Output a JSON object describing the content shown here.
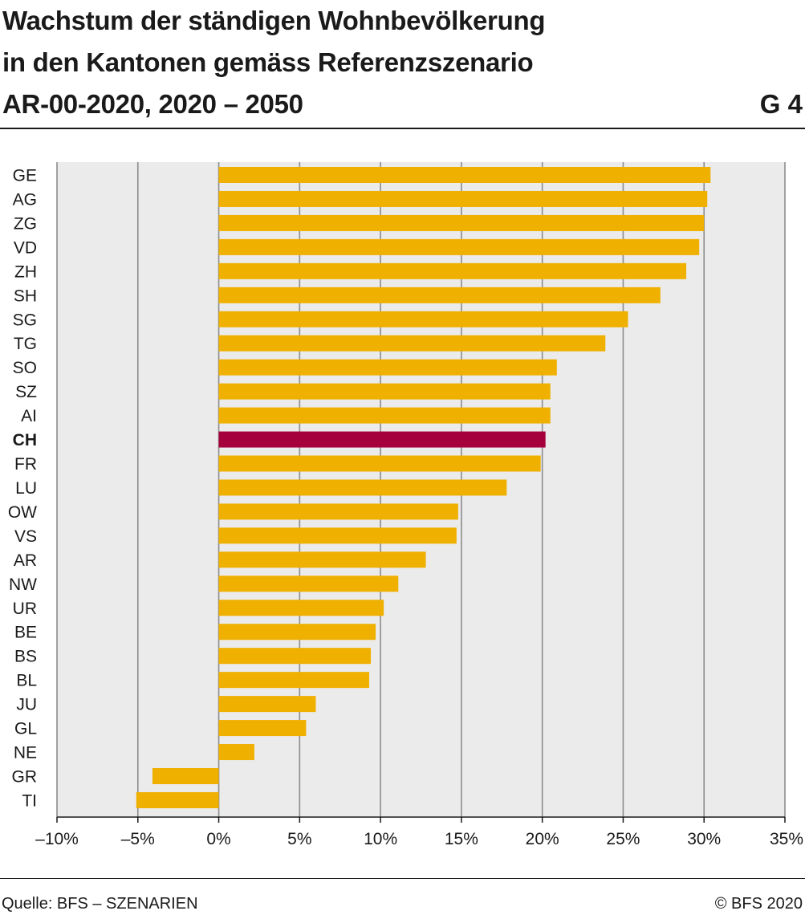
{
  "header": {
    "title_lines": [
      "Wachstum der ständigen Wohnbevölkerung",
      "in den Kantonen gemäss Referenzszenario",
      "AR-00-2020, 2020 – 2050"
    ],
    "graphic_number": "G 4"
  },
  "footer": {
    "source": "Quelle: BFS – SZENARIEN",
    "copyright": "© BFS 2020"
  },
  "colors": {
    "bar": "#f0b000",
    "highlight_bar": "#a5003c",
    "plot_background": "#ebebeb",
    "gridline": "#8c8c8c",
    "axis": "#1a1a1a"
  },
  "chart_data": {
    "type": "bar",
    "orientation": "horizontal",
    "categories": [
      "GE",
      "AG",
      "ZG",
      "VD",
      "ZH",
      "SH",
      "SG",
      "TG",
      "SO",
      "SZ",
      "AI",
      "CH",
      "FR",
      "LU",
      "OW",
      "VS",
      "AR",
      "NW",
      "UR",
      "BE",
      "BS",
      "BL",
      "JU",
      "GL",
      "NE",
      "GR",
      "TI"
    ],
    "values": [
      30.4,
      30.2,
      30.0,
      29.7,
      28.9,
      27.3,
      25.3,
      23.9,
      20.9,
      20.5,
      20.5,
      20.2,
      19.9,
      17.8,
      14.8,
      14.7,
      12.8,
      11.1,
      10.2,
      9.7,
      9.4,
      9.3,
      6.0,
      5.4,
      2.2,
      -4.1,
      -5.1
    ],
    "highlight": "CH",
    "xlim": [
      -10,
      35
    ],
    "xticks": [
      -10,
      -5,
      0,
      5,
      10,
      15,
      20,
      25,
      30,
      35
    ],
    "xtick_labels": [
      "–10%",
      "–5%",
      "0%",
      "5%",
      "10%",
      "15%",
      "20%",
      "25%",
      "30%",
      "35%"
    ],
    "grid": "vertical",
    "title": "",
    "xlabel": "",
    "ylabel": ""
  }
}
